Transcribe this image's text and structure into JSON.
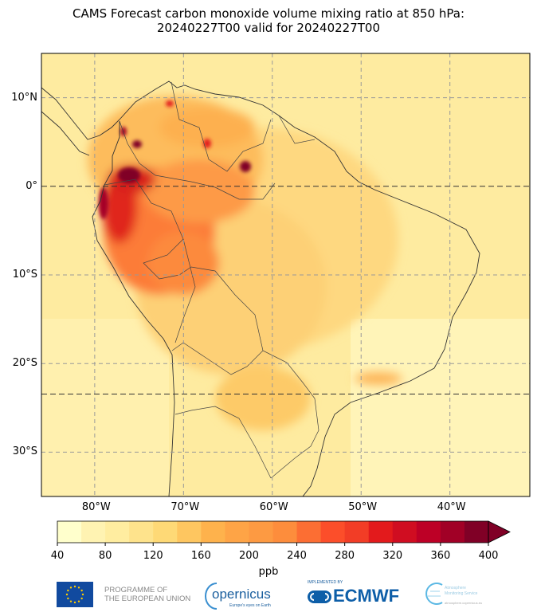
{
  "title": {
    "line1": "CAMS Forecast carbon monoxide volume mixing ratio at 850 hPa:",
    "line2": "20240227T00 valid for 20240227T00"
  },
  "map": {
    "extent_lon": [
      -86,
      -31
    ],
    "extent_lat": [
      -35,
      15
    ],
    "lat_ticks": [
      {
        "value": 10,
        "label": "10°N"
      },
      {
        "value": 0,
        "label": "0°"
      },
      {
        "value": -10,
        "label": "10°S"
      },
      {
        "value": -20,
        "label": "20°S"
      },
      {
        "value": -30,
        "label": "30°S"
      }
    ],
    "lon_ticks": [
      {
        "value": -80,
        "label": "80°W"
      },
      {
        "value": -70,
        "label": "70°W"
      },
      {
        "value": -60,
        "label": "60°W"
      },
      {
        "value": -50,
        "label": "50°W"
      },
      {
        "value": -40,
        "label": "40°W"
      }
    ],
    "gridlines": true,
    "highlight_lines": [
      "Equator",
      "Tropic of Capricorn"
    ]
  },
  "colorbar": {
    "unit": "ppb",
    "min": 40,
    "max": 400,
    "step": 20,
    "extend": "max",
    "tick_labels": [
      "40",
      "80",
      "120",
      "160",
      "200",
      "240",
      "280",
      "320",
      "360",
      "400"
    ],
    "colors": [
      "#ffffcc",
      "#fff3b2",
      "#ffeda0",
      "#fee38c",
      "#fed976",
      "#fec660",
      "#feb24c",
      "#fea446",
      "#fd9a42",
      "#fd8d3c",
      "#fc6e33",
      "#fc4e2a",
      "#f23d26",
      "#e31a1c",
      "#d00d21",
      "#bd0026",
      "#a10026",
      "#800026"
    ],
    "over_color": "#800026"
  },
  "logos": {
    "eu": "PROGRAMME OF THE EUROPEAN UNION",
    "eu_line1": "PROGRAMME OF",
    "eu_line2": "THE EUROPEAN UNION",
    "copernicus": "opernicus",
    "copernicus_tag": "Europe's eyes on Earth",
    "ecmwf_pre": "IMPLEMENTED BY",
    "ecmwf": "ECMWF",
    "cams1": "Atmosphere",
    "cams2": "Monitoring Service",
    "cams_url": "atmosphere.copernicus.eu"
  }
}
